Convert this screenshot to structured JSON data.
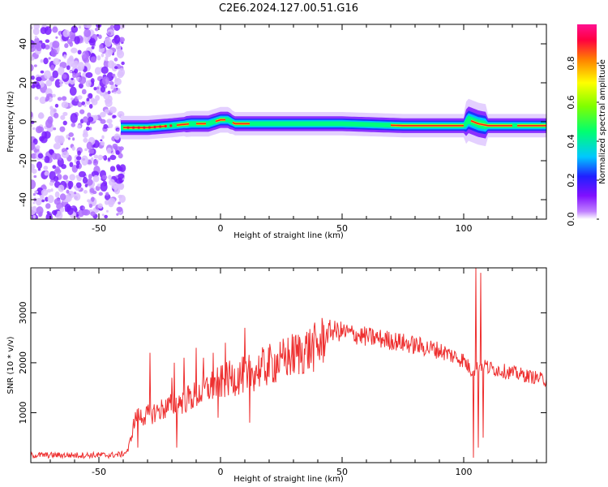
{
  "title": "C2E6.2024.127.00.51.G16",
  "colors": {
    "snr_line": "#ee3030",
    "spectrogram_noise": "#7a1fff",
    "spectrogram_core": "#ff2020",
    "axis": "#000000"
  },
  "chart_data": [
    {
      "type": "heatmap",
      "name": "spectrogram",
      "xlabel": "Height of straight line (km)",
      "ylabel": "Frequency (Hz)",
      "xlim": [
        -78,
        134
      ],
      "ylim": [
        -50,
        50
      ],
      "x_ticks": [
        -50,
        0,
        50,
        100
      ],
      "y_ticks": [
        -40,
        -20,
        0,
        20,
        40
      ],
      "x_tick_labels": [
        "-50",
        "0",
        "50",
        "100"
      ],
      "y_tick_labels": [
        "-40",
        "-20",
        "0",
        "20",
        "40"
      ],
      "noise_region_x": [
        -78,
        -40
      ],
      "signal_start_km": -41,
      "signal_end_km": 134,
      "signal_center_hz": [
        [
          -41,
          -3
        ],
        [
          -30,
          -3
        ],
        [
          -20,
          -2
        ],
        [
          -12,
          -1
        ],
        [
          -5,
          -1
        ],
        [
          0,
          1
        ],
        [
          3,
          1
        ],
        [
          6,
          -1
        ],
        [
          10,
          -1
        ],
        [
          20,
          -1
        ],
        [
          50,
          -1
        ],
        [
          75,
          -2
        ],
        [
          100,
          -2
        ],
        [
          102,
          1
        ],
        [
          106,
          -1
        ],
        [
          110,
          -2
        ],
        [
          134,
          -2
        ]
      ],
      "colorbar": {
        "label": "Normalized spectral amplitude",
        "range": [
          0,
          1
        ],
        "ticks": [
          0.0,
          0.2,
          0.4,
          0.6,
          0.8
        ],
        "tick_labels": [
          "0.0",
          "0.2",
          "0.4",
          "0.6",
          "0.8"
        ],
        "colors": [
          "#ffffff",
          "#c080ff",
          "#8010ff",
          "#2020ff",
          "#00c8ff",
          "#00ff70",
          "#80ff00",
          "#ffff00",
          "#ff8000",
          "#ff0040",
          "#ff1090"
        ]
      }
    },
    {
      "type": "line",
      "name": "snr",
      "xlabel": "Height of straight line (km)",
      "ylabel": "SNR (10 * v/v)",
      "xlim": [
        -78,
        134
      ],
      "ylim": [
        0,
        3900
      ],
      "x_ticks": [
        -50,
        0,
        50,
        100
      ],
      "y_ticks": [
        1000,
        2000,
        3000
      ],
      "x_tick_labels": [
        "-50",
        "0",
        "50",
        "100"
      ],
      "y_tick_labels": [
        "1000",
        "2000",
        "3000"
      ],
      "envelope": [
        [
          -78,
          150
        ],
        [
          -60,
          150
        ],
        [
          -45,
          150
        ],
        [
          -40,
          170
        ],
        [
          -38,
          250
        ],
        [
          -35,
          900
        ],
        [
          -30,
          950
        ],
        [
          -25,
          1050
        ],
        [
          -20,
          1150
        ],
        [
          -15,
          1250
        ],
        [
          -10,
          1350
        ],
        [
          -5,
          1500
        ],
        [
          0,
          1600
        ],
        [
          5,
          1700
        ],
        [
          10,
          1750
        ],
        [
          15,
          1850
        ],
        [
          20,
          1950
        ],
        [
          25,
          2050
        ],
        [
          30,
          2150
        ],
        [
          35,
          2250
        ],
        [
          40,
          2320
        ],
        [
          43,
          2500
        ],
        [
          45,
          2650
        ],
        [
          50,
          2620
        ],
        [
          60,
          2520
        ],
        [
          70,
          2450
        ],
        [
          80,
          2350
        ],
        [
          90,
          2250
        ],
        [
          95,
          2150
        ],
        [
          100,
          2050
        ],
        [
          103,
          1850
        ],
        [
          106,
          1900
        ],
        [
          108,
          2000
        ],
        [
          110,
          1900
        ],
        [
          115,
          1850
        ],
        [
          120,
          1800
        ],
        [
          125,
          1750
        ],
        [
          130,
          1700
        ],
        [
          134,
          1650
        ]
      ],
      "spikes": [
        [
          -34,
          300
        ],
        [
          -29,
          2200
        ],
        [
          -20,
          1700
        ],
        [
          -19,
          2000
        ],
        [
          -18,
          300
        ],
        [
          -15,
          2100
        ],
        [
          -10,
          2300
        ],
        [
          -7,
          2100
        ],
        [
          -3,
          2200
        ],
        [
          -1,
          900
        ],
        [
          2,
          2400
        ],
        [
          7,
          1500
        ],
        [
          10,
          2700
        ],
        [
          11,
          1500
        ],
        [
          12,
          800
        ],
        [
          25,
          2100
        ],
        [
          38,
          2400
        ],
        [
          104,
          100
        ],
        [
          105,
          3900
        ],
        [
          106,
          300
        ],
        [
          107,
          3800
        ],
        [
          108,
          500
        ]
      ]
    }
  ]
}
